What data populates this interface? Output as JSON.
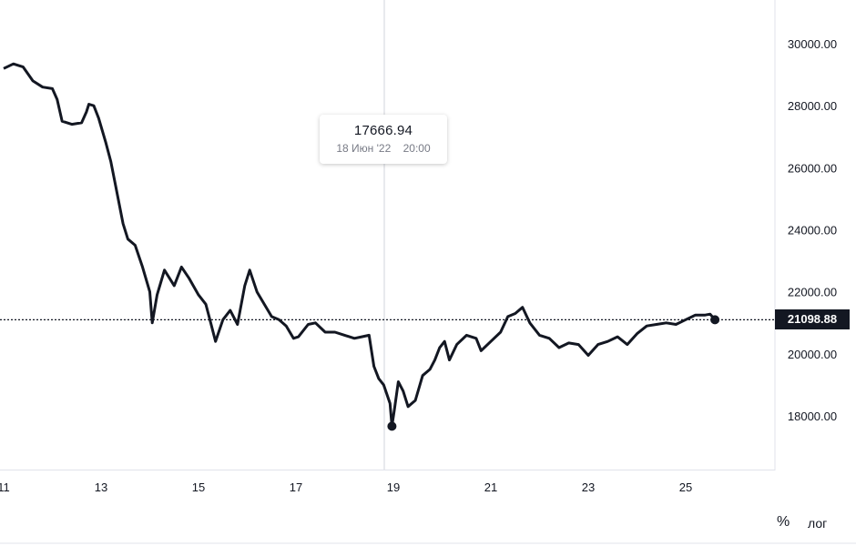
{
  "chart_data": {
    "type": "line",
    "x_unit": "day of month (June 2022)",
    "x_range": [
      11,
      27
    ],
    "ylim": [
      16200,
      31500
    ],
    "x_ticks": [
      {
        "value": 11,
        "label": "11"
      },
      {
        "value": 13,
        "label": "13"
      },
      {
        "value": 15,
        "label": "15"
      },
      {
        "value": 17,
        "label": "17"
      },
      {
        "value": 19,
        "label": "19"
      },
      {
        "value": 21,
        "label": "21"
      },
      {
        "value": 23,
        "label": "23"
      },
      {
        "value": 25,
        "label": "25"
      }
    ],
    "y_ticks": [
      {
        "value": 30000,
        "label": "30000.00"
      },
      {
        "value": 28000,
        "label": "28000.00"
      },
      {
        "value": 26000,
        "label": "26000.00"
      },
      {
        "value": 24000,
        "label": "24000.00"
      },
      {
        "value": 22000,
        "label": "22000.00"
      },
      {
        "value": 20000,
        "label": "20000.00"
      },
      {
        "value": 18000,
        "label": "18000.00"
      }
    ],
    "series": [
      {
        "color": "#131722",
        "points": [
          [
            11.0,
            29200
          ],
          [
            11.2,
            29350
          ],
          [
            11.4,
            29250
          ],
          [
            11.6,
            28800
          ],
          [
            11.8,
            28600
          ],
          [
            12.0,
            28550
          ],
          [
            12.1,
            28200
          ],
          [
            12.2,
            27500
          ],
          [
            12.4,
            27400
          ],
          [
            12.6,
            27450
          ],
          [
            12.7,
            27800
          ],
          [
            12.75,
            28050
          ],
          [
            12.85,
            28000
          ],
          [
            12.95,
            27600
          ],
          [
            13.1,
            26800
          ],
          [
            13.2,
            26200
          ],
          [
            13.3,
            25400
          ],
          [
            13.45,
            24200
          ],
          [
            13.55,
            23700
          ],
          [
            13.7,
            23500
          ],
          [
            13.85,
            22800
          ],
          [
            14.0,
            22000
          ],
          [
            14.05,
            21000
          ],
          [
            14.15,
            21900
          ],
          [
            14.3,
            22700
          ],
          [
            14.5,
            22200
          ],
          [
            14.65,
            22800
          ],
          [
            14.8,
            22450
          ],
          [
            15.0,
            21900
          ],
          [
            15.15,
            21600
          ],
          [
            15.25,
            21000
          ],
          [
            15.35,
            20400
          ],
          [
            15.5,
            21100
          ],
          [
            15.65,
            21400
          ],
          [
            15.8,
            20950
          ],
          [
            15.95,
            22200
          ],
          [
            16.05,
            22700
          ],
          [
            16.2,
            22000
          ],
          [
            16.35,
            21600
          ],
          [
            16.5,
            21200
          ],
          [
            16.65,
            21100
          ],
          [
            16.8,
            20900
          ],
          [
            16.95,
            20500
          ],
          [
            17.05,
            20550
          ],
          [
            17.25,
            20950
          ],
          [
            17.4,
            21000
          ],
          [
            17.6,
            20700
          ],
          [
            17.8,
            20700
          ],
          [
            18.0,
            20600
          ],
          [
            18.2,
            20500
          ],
          [
            18.35,
            20550
          ],
          [
            18.5,
            20600
          ],
          [
            18.6,
            19600
          ],
          [
            18.7,
            19200
          ],
          [
            18.8,
            19000
          ],
          [
            18.93,
            18400
          ],
          [
            18.97,
            17667
          ],
          [
            19.02,
            18200
          ],
          [
            19.1,
            19100
          ],
          [
            19.2,
            18800
          ],
          [
            19.3,
            18300
          ],
          [
            19.45,
            18500
          ],
          [
            19.6,
            19300
          ],
          [
            19.75,
            19500
          ],
          [
            19.85,
            19800
          ],
          [
            19.95,
            20200
          ],
          [
            20.05,
            20400
          ],
          [
            20.15,
            19800
          ],
          [
            20.3,
            20300
          ],
          [
            20.5,
            20600
          ],
          [
            20.7,
            20500
          ],
          [
            20.8,
            20100
          ],
          [
            21.0,
            20400
          ],
          [
            21.2,
            20700
          ],
          [
            21.35,
            21200
          ],
          [
            21.5,
            21300
          ],
          [
            21.65,
            21500
          ],
          [
            21.8,
            21000
          ],
          [
            22.0,
            20600
          ],
          [
            22.2,
            20500
          ],
          [
            22.4,
            20200
          ],
          [
            22.6,
            20350
          ],
          [
            22.8,
            20300
          ],
          [
            23.0,
            19950
          ],
          [
            23.2,
            20300
          ],
          [
            23.4,
            20400
          ],
          [
            23.6,
            20550
          ],
          [
            23.8,
            20300
          ],
          [
            24.0,
            20650
          ],
          [
            24.2,
            20900
          ],
          [
            24.4,
            20950
          ],
          [
            24.6,
            21000
          ],
          [
            24.8,
            20950
          ],
          [
            25.0,
            21100
          ],
          [
            25.2,
            21250
          ],
          [
            25.4,
            21250
          ],
          [
            25.5,
            21280
          ],
          [
            25.6,
            21098.88
          ]
        ]
      }
    ]
  },
  "tooltip": {
    "price": "17666.94",
    "date": "18 Июн '22",
    "time": "20:00"
  },
  "last_price": {
    "label": "21098.88",
    "value": 21098.88
  },
  "scale_buttons": {
    "percent": "%",
    "log": "лог"
  }
}
